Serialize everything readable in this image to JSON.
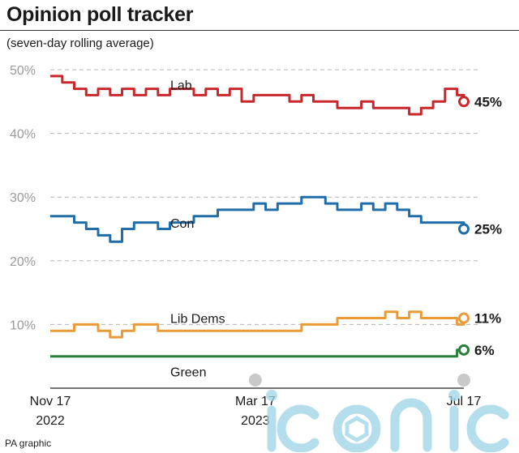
{
  "title": "Opinion poll tracker",
  "subtitle": "(seven-day rolling average)",
  "credit": "PA graphic",
  "watermark": "iconic",
  "chart_data": {
    "type": "line",
    "title": "Opinion poll tracker",
    "subtitle": "(seven-day rolling average)",
    "y_unit": "%",
    "ylim": [
      0,
      50
    ],
    "y_ticks": [
      10,
      20,
      30,
      40,
      50
    ],
    "y_tick_labels": [
      "10%",
      "20%",
      "30%",
      "40%",
      "50%"
    ],
    "grid": "horizontal dashed",
    "x_range": [
      "2022-11-17",
      "2023-07-17"
    ],
    "x_tick_labels": [
      {
        "date": "2022-11-17",
        "line1": "Nov 17",
        "line2": "2022"
      },
      {
        "date": "2023-03-17",
        "line1": "Mar 17",
        "line2": "2023"
      },
      {
        "date": "2023-07-17",
        "line1": "Jul 17",
        "line2": ""
      }
    ],
    "x": [
      "2022-11-17",
      "2022-11-24",
      "2022-12-01",
      "2022-12-08",
      "2022-12-15",
      "2022-12-22",
      "2022-12-29",
      "2023-01-05",
      "2023-01-12",
      "2023-01-19",
      "2023-01-26",
      "2023-02-02",
      "2023-02-09",
      "2023-02-16",
      "2023-02-23",
      "2023-03-02",
      "2023-03-09",
      "2023-03-16",
      "2023-03-23",
      "2023-03-30",
      "2023-04-06",
      "2023-04-13",
      "2023-04-20",
      "2023-04-27",
      "2023-05-04",
      "2023-05-11",
      "2023-05-18",
      "2023-05-25",
      "2023-06-01",
      "2023-06-08",
      "2023-06-15",
      "2023-06-22",
      "2023-06-29",
      "2023-07-06",
      "2023-07-13",
      "2023-07-17"
    ],
    "series": [
      {
        "name": "Lab",
        "color": "#c8272b",
        "label_text": "Lab",
        "end_label": "45%",
        "values": [
          49,
          48,
          47,
          46,
          47,
          46,
          47,
          46,
          47,
          46,
          47,
          47,
          46,
          47,
          46,
          47,
          45,
          46,
          46,
          46,
          45,
          46,
          45,
          45,
          44,
          44,
          45,
          44,
          44,
          44,
          43,
          44,
          45,
          47,
          46,
          45
        ]
      },
      {
        "name": "Con",
        "color": "#1f6ea9",
        "label_text": "Con",
        "end_label": "25%",
        "values": [
          27,
          27,
          26,
          25,
          24,
          23,
          25,
          26,
          26,
          25,
          26,
          26,
          27,
          27,
          28,
          28,
          28,
          29,
          28,
          29,
          29,
          30,
          30,
          29,
          28,
          28,
          29,
          28,
          29,
          28,
          27,
          26,
          26,
          26,
          26,
          25
        ]
      },
      {
        "name": "Lib Dems",
        "color": "#e99b3a",
        "label_text": "Lib Dems",
        "end_label": "11%",
        "values": [
          9,
          9,
          10,
          10,
          9,
          8,
          9,
          10,
          10,
          9,
          9,
          9,
          9,
          9,
          9,
          9,
          9,
          9,
          9,
          9,
          9,
          10,
          10,
          10,
          11,
          11,
          11,
          11,
          12,
          11,
          12,
          11,
          11,
          11,
          10,
          11
        ]
      },
      {
        "name": "Green",
        "color": "#2a7d3a",
        "label_text": "Green",
        "end_label": "6%",
        "values": [
          5,
          5,
          5,
          5,
          5,
          5,
          5,
          5,
          5,
          5,
          5,
          5,
          5,
          5,
          5,
          5,
          5,
          5,
          5,
          5,
          5,
          5,
          5,
          5,
          5,
          5,
          5,
          5,
          5,
          5,
          5,
          5,
          5,
          5,
          6,
          6
        ]
      }
    ]
  }
}
